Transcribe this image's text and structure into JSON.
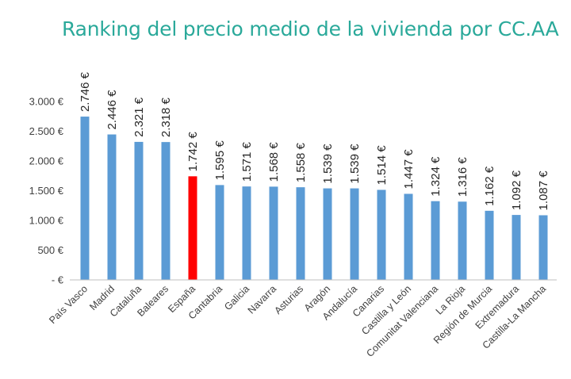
{
  "chart_data": {
    "type": "bar",
    "title": "Ranking del precio medio de la vivienda por CC.AA",
    "categories": [
      "País Vasco",
      "Madrid",
      "Cataluña",
      "Baleares",
      "España",
      "Cantabria",
      "Galicia",
      "Navarra",
      "Asturias",
      "Aragón",
      "Andalucía",
      "Canarias",
      "Castilla y León",
      "Comunitat Valenciana",
      "La Rioja",
      "Región de Murcia",
      "Extremadura",
      "Castilla-La Mancha"
    ],
    "values": [
      2746,
      2446,
      2321,
      2318,
      1742,
      1595,
      1571,
      1568,
      1558,
      1539,
      1539,
      1514,
      1447,
      1324,
      1316,
      1162,
      1092,
      1087
    ],
    "data_labels": [
      "2.746 €",
      "2.446 €",
      "2.321 €",
      "2.318 €",
      "1.742 €",
      "1.595 €",
      "1.571 €",
      "1.568 €",
      "1.558 €",
      "1.539 €",
      "1.539 €",
      "1.514 €",
      "1.447 €",
      "1.324 €",
      "1.316 €",
      "1.162 €",
      "1.092 €",
      "1.087 €"
    ],
    "ylim": [
      0,
      3000
    ],
    "yticks": [
      0,
      500,
      1000,
      1500,
      2000,
      2500,
      3000
    ],
    "ytick_labels": [
      "-   €",
      "500 €",
      "1.000 €",
      "1.500 €",
      "2.000 €",
      "2.500 €",
      "3.000 €"
    ],
    "xlabel": "",
    "ylabel": "",
    "grid": false,
    "colors": {
      "bar": "#5b9bd5",
      "highlight": "#ff0000",
      "highlight_category": "España",
      "title": "#2aa99a",
      "axis": "#bfbfbf"
    }
  }
}
